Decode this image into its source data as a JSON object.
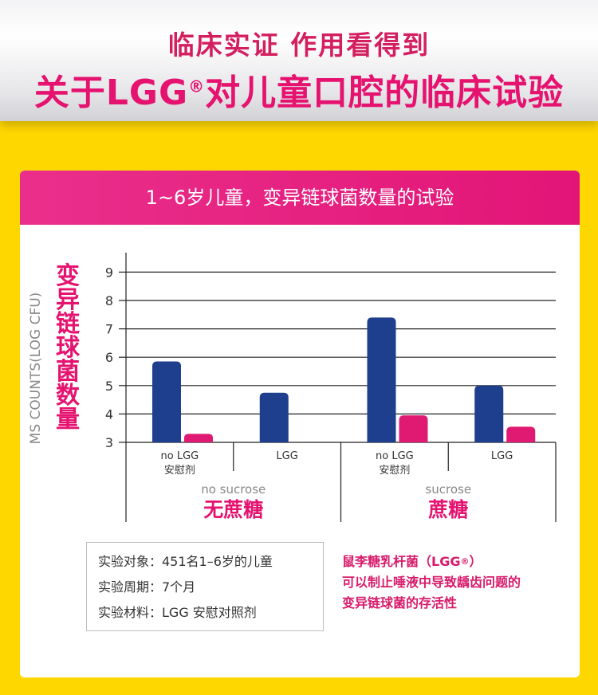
{
  "header": {
    "subtitle": "临床实证 作用看得到",
    "title": "关于LGG",
    "title_mark": "®",
    "title_rest": "对儿童口腔的临床试验"
  },
  "card": {
    "header": "1~6岁儿童，变异链球菌数量的试验"
  },
  "chart_data": {
    "type": "bar",
    "ylabel": "变异链球菌数量",
    "ylabel_en": "MS COUNTS(LOG CFU)",
    "ylim": [
      3,
      9.5
    ],
    "yticks": [
      3,
      4,
      5,
      6,
      7,
      8,
      9
    ],
    "grid": true,
    "groups": [
      {
        "label_en": "no sucrose",
        "label_cn": "无蔗糖"
      },
      {
        "label_en": "sucrose",
        "label_cn": "蔗糖"
      }
    ],
    "categories": [
      {
        "line1": "no LGG",
        "line2": "安慰剂"
      },
      {
        "line1": "LGG",
        "line2": ""
      },
      {
        "line1": "no LGG",
        "line2": "安慰剂"
      },
      {
        "line1": "LGG",
        "line2": ""
      }
    ],
    "series": [
      {
        "values": [
          5.85,
          4.75,
          7.4,
          5.0
        ],
        "color": "#1e3f8e"
      },
      {
        "values": [
          3.3,
          null,
          3.95,
          3.55
        ],
        "color": "#e01a72"
      }
    ]
  },
  "info": {
    "rows": [
      "实验对象：451名1–6岁的儿童",
      "实验周期：7个月",
      "实验材料：LGG    安慰对照剂"
    ]
  },
  "note": {
    "line1": "鼠李糖乳杆菌（LGG",
    "line1_mark": "®",
    "line1_end": "）",
    "line2": "可以制止唾液中导致龋齿问题的",
    "line3": "变异链球菌的存活性"
  }
}
